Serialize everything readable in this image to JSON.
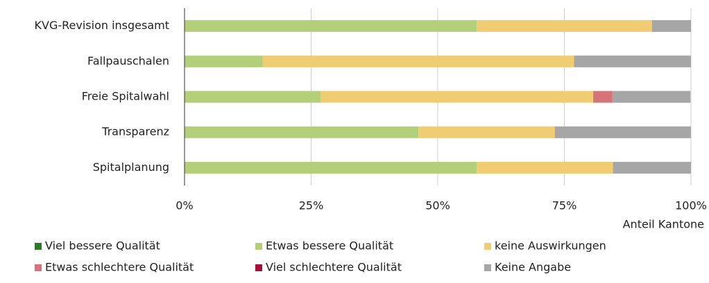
{
  "chart_data": {
    "type": "stacked-bar-horizontal",
    "categories": [
      "KVG-Revision insgesamt",
      "Fallpauschalen",
      "Freie Spitalwahl",
      "Transparenz",
      "Spitalplanung"
    ],
    "series": [
      {
        "name": "Viel bessere Qualität",
        "color": "#2a7a2a",
        "values": [
          0,
          0,
          0,
          0,
          0
        ]
      },
      {
        "name": "Etwas bessere Qualität",
        "color": "#b3cf7a",
        "values": [
          57.7,
          15.4,
          26.9,
          46.2,
          57.7
        ]
      },
      {
        "name": "keine Auswirkungen",
        "color": "#f0cd72",
        "values": [
          34.6,
          61.5,
          53.8,
          26.9,
          26.9
        ]
      },
      {
        "name": "Etwas schlechtere Qualität",
        "color": "#d4737a",
        "values": [
          0,
          0,
          3.8,
          0,
          0
        ]
      },
      {
        "name": "Viel schlechtere Qualität",
        "color": "#a50f3a",
        "values": [
          0,
          0,
          0,
          0,
          0
        ]
      },
      {
        "name": "Keine Angabe",
        "color": "#a6a6a6",
        "values": [
          7.7,
          23.1,
          15.4,
          26.9,
          15.4
        ]
      }
    ],
    "x_label": "Anteil Kantone",
    "xlim": [
      0,
      100
    ],
    "xticks": [
      {
        "value": 0,
        "label": "0%"
      },
      {
        "value": 25,
        "label": "25%"
      },
      {
        "value": 50,
        "label": "50%"
      },
      {
        "value": 75,
        "label": "75%"
      },
      {
        "value": 100,
        "label": "100%"
      }
    ],
    "grid": true
  }
}
